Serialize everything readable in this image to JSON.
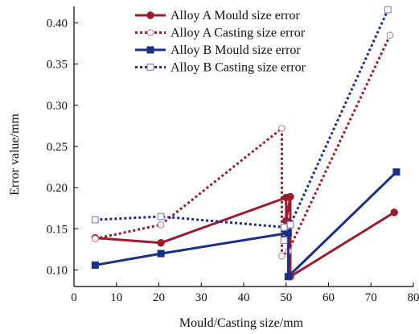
{
  "chart_data": {
    "type": "line",
    "title": "",
    "xlabel": "Mould/Casting size/mm",
    "ylabel": "Error value/mm",
    "xlim": [
      0,
      80
    ],
    "ylim": [
      0.08,
      0.42
    ],
    "xticks": [
      0,
      10,
      20,
      30,
      40,
      50,
      60,
      70,
      80
    ],
    "yticks": [
      0.1,
      0.15,
      0.2,
      0.25,
      0.3,
      0.35,
      0.4
    ],
    "ytick_labels": [
      "0.10",
      "0.15",
      "0.20",
      "0.25",
      "0.30",
      "0.35",
      "0.40"
    ],
    "grid": false,
    "legend_position": "top",
    "series": [
      {
        "name": "Alloy A Mould size error",
        "color": "#9b1c2c",
        "line": "solid",
        "marker": "filled-circle",
        "points": [
          [
            5,
            0.139
          ],
          [
            20.5,
            0.133
          ],
          [
            50,
            0.188
          ],
          [
            50,
            0.16
          ],
          [
            51,
            0.189
          ],
          [
            51,
            0.092
          ],
          [
            75.5,
            0.17
          ]
        ]
      },
      {
        "name": "Alloy A Casting size error",
        "color": "#9b1c2c",
        "line": "dotted",
        "marker": "open-circle",
        "points": [
          [
            5,
            0.138
          ],
          [
            20.5,
            0.155
          ],
          [
            49,
            0.272
          ],
          [
            49,
            0.117
          ],
          [
            50.5,
            0.123
          ],
          [
            74.5,
            0.385
          ]
        ]
      },
      {
        "name": "Alloy B Mould size error",
        "color": "#1a2f8a",
        "line": "solid",
        "marker": "filled-square",
        "points": [
          [
            5,
            0.106
          ],
          [
            20.5,
            0.12
          ],
          [
            50.5,
            0.145
          ],
          [
            50.5,
            0.092
          ],
          [
            76,
            0.219
          ]
        ]
      },
      {
        "name": "Alloy B Casting size error",
        "color": "#1a2f8a",
        "line": "dotted",
        "marker": "open-square",
        "points": [
          [
            5,
            0.161
          ],
          [
            20.5,
            0.165
          ],
          [
            49.5,
            0.152
          ],
          [
            49.5,
            0.136
          ],
          [
            51,
            0.155
          ],
          [
            74,
            0.416
          ]
        ]
      }
    ]
  }
}
